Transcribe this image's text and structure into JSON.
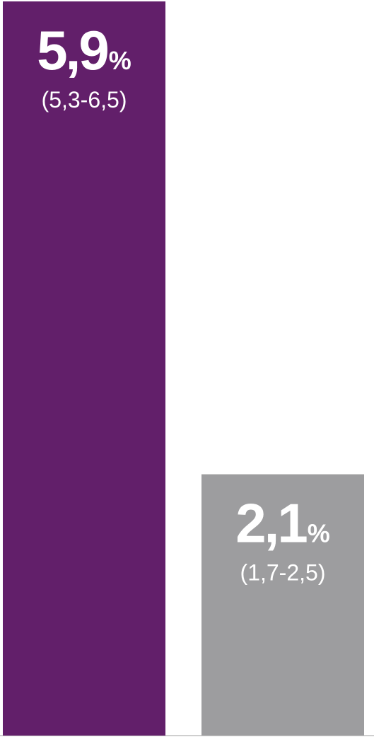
{
  "chart_data": {
    "type": "bar",
    "categories": [
      "",
      ""
    ],
    "values": [
      5.9,
      2.1
    ],
    "value_labels": [
      "5,9",
      "2,1"
    ],
    "unit": "%",
    "ci_labels": [
      "(5,3-6,5)",
      "(1,7-2,5)"
    ],
    "ylim": [
      0,
      5.9
    ],
    "grid": false,
    "legend": "none",
    "colors": [
      "#621f6a",
      "#9d9d9f"
    ]
  }
}
